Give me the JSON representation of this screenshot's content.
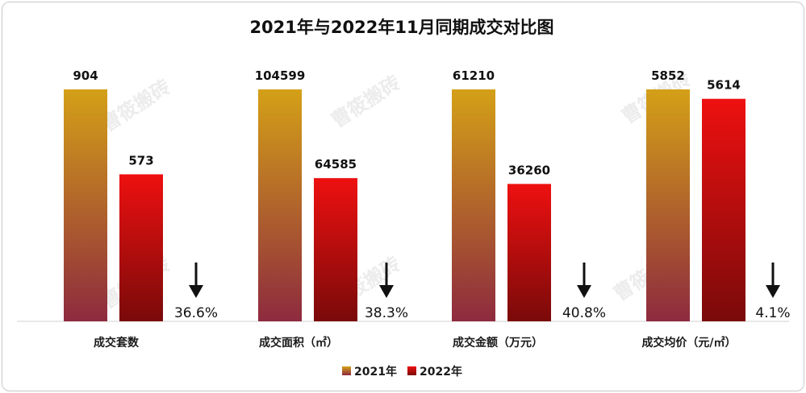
{
  "chart_data": {
    "type": "bar",
    "title": "2021年与2022年11月同期成交对比图",
    "categories": [
      "成交套数",
      "成交面积（㎡）",
      "成交金额（万元）",
      "成交均价（元/㎡）"
    ],
    "series": [
      {
        "name": "2021年",
        "values": [
          904,
          104599,
          61210,
          5852
        ],
        "labels": [
          "904",
          "104599",
          "61210",
          "5852"
        ],
        "color_top": "#d4a017",
        "color_bottom": "#8e2a3f"
      },
      {
        "name": "2022年",
        "values": [
          573,
          64585,
          36260,
          5614
        ],
        "labels": [
          "573",
          "64585",
          "36260",
          "5614"
        ],
        "color_top": "#ee1010",
        "color_bottom": "#7a0a0a"
      }
    ],
    "decline": [
      "36.6%",
      "38.3%",
      "40.8%",
      "4.1%"
    ],
    "scale_note": "each category group scaled independently",
    "legend_position": "bottom",
    "grid": false
  },
  "watermark": "曹筱搬砖",
  "icons": {
    "decline_arrow": "down-arrow-icon"
  }
}
